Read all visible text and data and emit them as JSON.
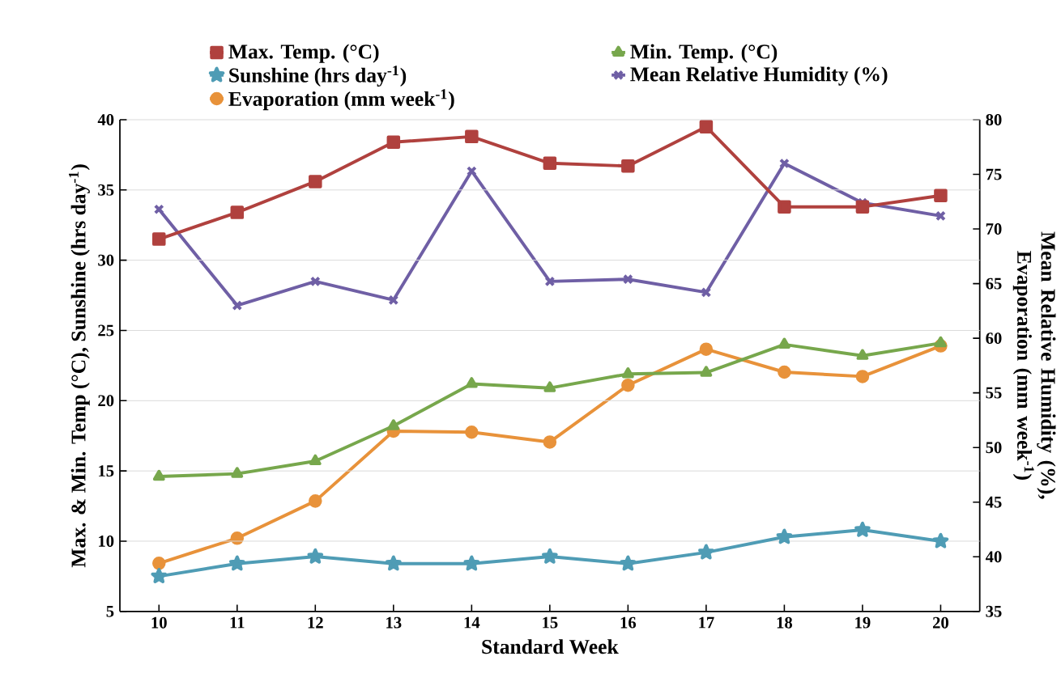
{
  "chart_data": {
    "type": "line",
    "xlabel": "Standard Week",
    "ylabel": "Max. & Min. Temp (°C), Sunshine (hrs day$^{-1}$)",
    "y2label": "Mean Relative Humidity (%), Evaporation (mm week$^{-1}$)",
    "categories": [
      "10",
      "11",
      "12",
      "13",
      "14",
      "15",
      "16",
      "17",
      "18",
      "19",
      "20"
    ],
    "series": [
      {
        "name": "Max. Temp. (°C)",
        "color": "#b0413e",
        "marker": "square",
        "values": [
          31.5,
          33.4,
          35.6,
          38.4,
          38.8,
          36.9,
          36.7,
          39.5,
          33.8,
          33.8,
          34.6
        ]
      },
      {
        "name": "Min. Temp. (°C)",
        "color": "#77a74c",
        "marker": "triangle",
        "values": [
          14.6,
          14.8,
          15.7,
          18.2,
          21.2,
          20.9,
          21.9,
          22.0,
          24.0,
          23.2,
          24.1
        ]
      },
      {
        "name": "Sunshine (hrs day$^{-1}$)",
        "color": "#4f9cb5",
        "marker": "star",
        "values": [
          7.5,
          8.4,
          8.9,
          8.4,
          8.4,
          8.9,
          8.4,
          9.2,
          10.3,
          10.8,
          10.0
        ]
      },
      {
        "name": "Mean Relative Humidity (%)",
        "color": "#6f5fa5",
        "marker": "cross",
        "axis": "y2",
        "values": [
          71.8,
          63.0,
          65.2,
          63.5,
          75.3,
          65.2,
          65.4,
          64.2,
          76.0,
          72.4,
          71.2
        ]
      },
      {
        "name": "Evaporation (mm week$^{-1}$)",
        "color": "#e8923a",
        "marker": "circle",
        "axis": "y2",
        "values": [
          39.4,
          41.7,
          45.1,
          51.5,
          51.4,
          50.5,
          55.7,
          59.0,
          56.9,
          56.5,
          59.3
        ]
      }
    ],
    "ylim": [
      5,
      40
    ],
    "yticks": [
      5,
      10,
      15,
      20,
      25,
      30,
      35,
      40
    ],
    "y2lim": [
      35,
      80
    ],
    "y2ticks": [
      35,
      40,
      45,
      50,
      55,
      60,
      65,
      70,
      75,
      80
    ],
    "grid": "y",
    "legend": "top"
  }
}
